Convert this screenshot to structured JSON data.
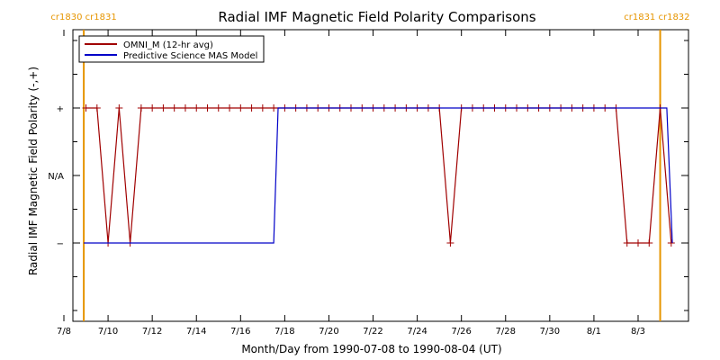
{
  "chart_data": {
    "type": "line",
    "title": "Radial IMF Magnetic Field Polarity Comparisons",
    "xlabel": "Month/Day from 1990-07-08 to 1990-08-04 (UT)",
    "ylabel": "Radial IMF Magnetic Field Polarity (-,+)",
    "x_unit": "day",
    "x_range_days": [
      0,
      27
    ],
    "x_ticks": [
      {
        "day": 0,
        "label": "7/8"
      },
      {
        "day": 2,
        "label": "7/10"
      },
      {
        "day": 4,
        "label": "7/12"
      },
      {
        "day": 6,
        "label": "7/14"
      },
      {
        "day": 8,
        "label": "7/16"
      },
      {
        "day": 10,
        "label": "7/18"
      },
      {
        "day": 12,
        "label": "7/20"
      },
      {
        "day": 14,
        "label": "7/22"
      },
      {
        "day": 16,
        "label": "7/24"
      },
      {
        "day": 18,
        "label": "7/26"
      },
      {
        "day": 20,
        "label": "7/28"
      },
      {
        "day": 22,
        "label": "7/30"
      },
      {
        "day": 24,
        "label": "8/1"
      },
      {
        "day": 26,
        "label": "8/3"
      }
    ],
    "y_ticks": [
      {
        "value": 1,
        "label": "+"
      },
      {
        "value": 0,
        "label": "N/A"
      },
      {
        "value": -1,
        "label": "−"
      }
    ],
    "ylim": [
      -2,
      2
    ],
    "carrington_markers": [
      {
        "day": 0.9,
        "label": "cr1830 cr1831",
        "color": "#e69500"
      },
      {
        "day": 27.0,
        "label": "cr1831 cr1832",
        "color": "#e69500"
      }
    ],
    "legend_position": "top-left",
    "series": [
      {
        "name": "OMNI_M (12-hr avg)",
        "color": "#a00000",
        "marker": "plus",
        "points": [
          {
            "day": 1.0,
            "y": 1
          },
          {
            "day": 1.5,
            "y": 1
          },
          {
            "day": 2.0,
            "y": -1
          },
          {
            "day": 2.5,
            "y": 1
          },
          {
            "day": 3.0,
            "y": -1
          },
          {
            "day": 3.5,
            "y": 1
          },
          {
            "day": 4.0,
            "y": 1
          },
          {
            "day": 4.5,
            "y": 1
          },
          {
            "day": 5.0,
            "y": 1
          },
          {
            "day": 5.5,
            "y": 1
          },
          {
            "day": 6.0,
            "y": 1
          },
          {
            "day": 6.5,
            "y": 1
          },
          {
            "day": 7.0,
            "y": 1
          },
          {
            "day": 7.5,
            "y": 1
          },
          {
            "day": 8.0,
            "y": 1
          },
          {
            "day": 8.5,
            "y": 1
          },
          {
            "day": 9.0,
            "y": 1
          },
          {
            "day": 9.5,
            "y": 1
          },
          {
            "day": 10.0,
            "y": 1
          },
          {
            "day": 10.5,
            "y": 1
          },
          {
            "day": 11.0,
            "y": 1
          },
          {
            "day": 11.5,
            "y": 1
          },
          {
            "day": 12.0,
            "y": 1
          },
          {
            "day": 12.5,
            "y": 1
          },
          {
            "day": 13.0,
            "y": 1
          },
          {
            "day": 13.5,
            "y": 1
          },
          {
            "day": 14.0,
            "y": 1
          },
          {
            "day": 14.5,
            "y": 1
          },
          {
            "day": 15.0,
            "y": 1
          },
          {
            "day": 15.5,
            "y": 1
          },
          {
            "day": 16.0,
            "y": 1
          },
          {
            "day": 16.5,
            "y": 1
          },
          {
            "day": 17.0,
            "y": 1
          },
          {
            "day": 17.5,
            "y": -1
          },
          {
            "day": 18.0,
            "y": 1
          },
          {
            "day": 18.5,
            "y": 1
          },
          {
            "day": 19.0,
            "y": 1
          },
          {
            "day": 19.5,
            "y": 1
          },
          {
            "day": 20.0,
            "y": 1
          },
          {
            "day": 20.5,
            "y": 1
          },
          {
            "day": 21.0,
            "y": 1
          },
          {
            "day": 21.5,
            "y": 1
          },
          {
            "day": 22.0,
            "y": 1
          },
          {
            "day": 22.5,
            "y": 1
          },
          {
            "day": 23.0,
            "y": 1
          },
          {
            "day": 23.5,
            "y": 1
          },
          {
            "day": 24.0,
            "y": 1
          },
          {
            "day": 24.5,
            "y": 1
          },
          {
            "day": 25.0,
            "y": 1
          },
          {
            "day": 25.5,
            "y": -1
          },
          {
            "day": 26.0,
            "y": -1
          },
          {
            "day": 26.5,
            "y": -1
          },
          {
            "day": 27.0,
            "y": 1
          },
          {
            "day": 27.5,
            "y": -1
          }
        ]
      },
      {
        "name": "Predictive Science MAS Model",
        "color": "#0000c8",
        "marker": "none",
        "points": [
          {
            "day": 0.9,
            "y": -1
          },
          {
            "day": 9.5,
            "y": -1
          },
          {
            "day": 9.7,
            "y": 1
          },
          {
            "day": 27.3,
            "y": 1
          },
          {
            "day": 27.55,
            "y": -1
          }
        ]
      }
    ]
  }
}
